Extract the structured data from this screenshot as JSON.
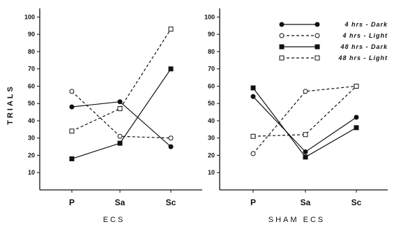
{
  "ylabel": "TRIALS",
  "legend": [
    {
      "label": "4 hrs - Dark",
      "line": "solid",
      "marker": "circle",
      "fill": "filled"
    },
    {
      "label": "4 hrs - Light",
      "line": "dashed",
      "marker": "circle",
      "fill": "open"
    },
    {
      "label": "48 hrs - Dark",
      "line": "solid",
      "marker": "square",
      "fill": "filled"
    },
    {
      "label": "48 hrs - Light",
      "line": "dashed",
      "marker": "square",
      "fill": "open"
    }
  ],
  "chart_data": [
    {
      "type": "line",
      "title": "ECS",
      "categories": [
        "P",
        "Sa",
        "Sc"
      ],
      "ylim": [
        0,
        105
      ],
      "yticks": [
        10,
        20,
        30,
        40,
        50,
        60,
        70,
        80,
        90,
        100
      ],
      "series": [
        {
          "name": "4 hrs - Dark",
          "values": [
            48,
            51,
            25
          ]
        },
        {
          "name": "4 hrs - Light",
          "values": [
            57,
            31,
            30
          ]
        },
        {
          "name": "48 hrs - Dark",
          "values": [
            18,
            27,
            70
          ]
        },
        {
          "name": "48 hrs - Light",
          "values": [
            34,
            47,
            93
          ]
        }
      ]
    },
    {
      "type": "line",
      "title": "SHAM ECS",
      "categories": [
        "P",
        "Sa",
        "Sc"
      ],
      "ylim": [
        0,
        105
      ],
      "yticks": [
        10,
        20,
        30,
        40,
        50,
        60,
        70,
        80,
        90,
        100
      ],
      "series": [
        {
          "name": "4 hrs - Dark",
          "values": [
            54,
            22,
            42
          ]
        },
        {
          "name": "4 hrs - Light",
          "values": [
            21,
            57,
            60
          ]
        },
        {
          "name": "48 hrs - Dark",
          "values": [
            59,
            19,
            36
          ]
        },
        {
          "name": "48 hrs - Light",
          "values": [
            31,
            32,
            60
          ]
        }
      ]
    }
  ]
}
